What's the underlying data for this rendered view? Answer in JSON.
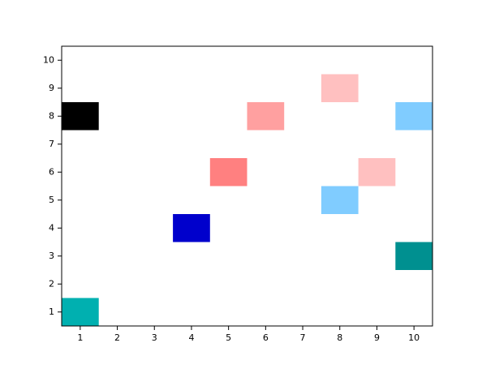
{
  "chart_data": {
    "type": "matrix",
    "cells": [
      {
        "x": 1,
        "y": 1,
        "color": "#00b0b0"
      },
      {
        "x": 1,
        "y": 8,
        "color": "#000000"
      },
      {
        "x": 4,
        "y": 4,
        "color": "#0000cc"
      },
      {
        "x": 5,
        "y": 6,
        "color": "#ff8080"
      },
      {
        "x": 6,
        "y": 8,
        "color": "#ffa0a0"
      },
      {
        "x": 8,
        "y": 9,
        "color": "#ffc0c0"
      },
      {
        "x": 8,
        "y": 5,
        "color": "#80ccff"
      },
      {
        "x": 9,
        "y": 6,
        "color": "#ffc0c0"
      },
      {
        "x": 10,
        "y": 8,
        "color": "#80ccff"
      },
      {
        "x": 10,
        "y": 3,
        "color": "#009090"
      }
    ],
    "xlim": [
      0.5,
      10.5
    ],
    "xticks": [
      1,
      2,
      3,
      4,
      5,
      6,
      7,
      8,
      9,
      10
    ],
    "ylim": [
      0.5,
      10.5
    ],
    "yticks": [
      1,
      2,
      3,
      4,
      5,
      6,
      7,
      8,
      9,
      10
    ]
  }
}
